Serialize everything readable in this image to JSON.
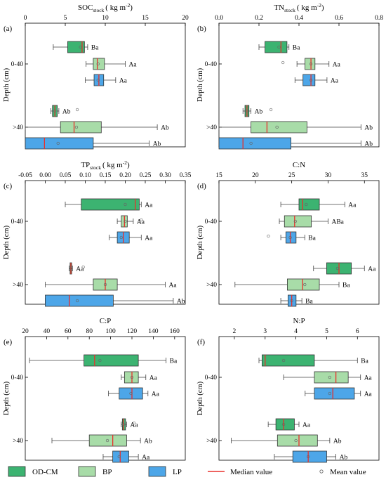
{
  "legend": {
    "groups": [
      {
        "label": "OD-CM",
        "color": "#3cb371"
      },
      {
        "label": "BP",
        "color": "#a8dca8"
      },
      {
        "label": "LP",
        "color": "#4da6e8"
      }
    ],
    "median_label": "Median value",
    "mean_label": "Mean value",
    "median_color": "#e8302c"
  },
  "chart_data": [
    {
      "type": "boxplot",
      "panel": "(a)",
      "title": "SOC",
      "title_sub": "stock",
      "title_unit": "( kg m",
      "title_sup": "-2",
      "title_end": ")",
      "xlim": [
        0,
        20
      ],
      "xticks": [
        "0",
        "5",
        "10",
        "15",
        "20"
      ],
      "ylabel": "Depth (cm)",
      "depth_labels": [
        "0-40",
        ">40"
      ],
      "groups": [
        {
          "depth": "0-40",
          "series": "OD-CM",
          "min": 3.5,
          "q1": 5.3,
          "median": 7.1,
          "q3": 7.4,
          "max": 7.8,
          "mean": 6.9,
          "letter": "Ba"
        },
        {
          "depth": "0-40",
          "series": "BP",
          "min": 7.6,
          "q1": 8.5,
          "median": 9.0,
          "q3": 9.9,
          "max": 12.5,
          "mean": 9.1,
          "letter": "Aa"
        },
        {
          "depth": "0-40",
          "series": "LP",
          "min": 7.5,
          "q1": 8.6,
          "median": 9.2,
          "q3": 9.8,
          "max": 11.3,
          "mean": 9.1,
          "letter": "Aa"
        },
        {
          "depth": ">40",
          "series": "OD-CM",
          "min": 3.2,
          "q1": 3.4,
          "median": 3.7,
          "q3": 4.0,
          "max": 4.2,
          "mean": 3.7,
          "letter": "Ab",
          "outliers": [
            6.5
          ]
        },
        {
          "depth": ">40",
          "series": "BP",
          "min": 0.0,
          "q1": 4.4,
          "median": 6.1,
          "q3": 9.5,
          "max": 16.5,
          "mean": 6.4,
          "letter": "Ab"
        },
        {
          "depth": ">40",
          "series": "LP",
          "min": 0.0,
          "q1": 0.0,
          "median": 2.4,
          "q3": 8.5,
          "max": 15.5,
          "mean": 4.1,
          "letter": "Ab"
        }
      ]
    },
    {
      "type": "boxplot",
      "panel": "(b)",
      "title": "TN",
      "title_sub": "stock",
      "title_unit": "( kg m",
      "title_sup": "-2",
      "title_end": ")",
      "xlim": [
        0.0,
        0.8
      ],
      "xticks": [
        "0.0",
        "0.2",
        "0.4",
        "0.6",
        "0.8"
      ],
      "ylabel": "Depth (cm)",
      "depth_labels": [
        "0-40",
        ">40"
      ],
      "groups": [
        {
          "depth": "0-40",
          "series": "OD-CM",
          "min": 0.2,
          "q1": 0.23,
          "median": 0.31,
          "q3": 0.34,
          "max": 0.35,
          "mean": 0.3,
          "letter": "Ba"
        },
        {
          "depth": "0-40",
          "series": "BP",
          "min": 0.39,
          "q1": 0.43,
          "median": 0.46,
          "q3": 0.48,
          "max": 0.55,
          "mean": 0.46,
          "letter": "Aa",
          "outliers": [
            0.32
          ]
        },
        {
          "depth": "0-40",
          "series": "LP",
          "min": 0.38,
          "q1": 0.42,
          "median": 0.46,
          "q3": 0.48,
          "max": 0.54,
          "mean": 0.46,
          "letter": "Aa"
        },
        {
          "depth": ">40",
          "series": "OD-CM",
          "min": 0.12,
          "q1": 0.13,
          "median": 0.14,
          "q3": 0.15,
          "max": 0.16,
          "mean": 0.14,
          "letter": "Ab",
          "outliers": [
            0.26
          ]
        },
        {
          "depth": ">40",
          "series": "BP",
          "min": 0.0,
          "q1": 0.16,
          "median": 0.24,
          "q3": 0.44,
          "max": 0.71,
          "mean": 0.29,
          "letter": "Ab"
        },
        {
          "depth": ">40",
          "series": "LP",
          "min": 0.0,
          "q1": 0.0,
          "median": 0.12,
          "q3": 0.36,
          "max": 0.71,
          "mean": 0.16,
          "letter": "Ab"
        }
      ]
    },
    {
      "type": "boxplot",
      "panel": "(c)",
      "title": "TP",
      "title_sub": "stock",
      "title_unit": "( kg m",
      "title_sup": "-2",
      "title_end": ")",
      "xlim": [
        -0.05,
        0.35
      ],
      "xticks": [
        "-0.05",
        "0.00",
        "0.05",
        "0.10",
        "0.15",
        "0.20",
        "0.25",
        "0.30",
        "0.35"
      ],
      "ylabel": "Depth (cm)",
      "depth_labels": [
        "0-40",
        ">40"
      ],
      "groups": [
        {
          "depth": "0-40",
          "series": "OD-CM",
          "min": 0.05,
          "q1": 0.09,
          "median": 0.225,
          "q3": 0.235,
          "max": 0.24,
          "mean": 0.2,
          "letter": "Aa"
        },
        {
          "depth": "0-40",
          "series": "BP",
          "min": 0.18,
          "q1": 0.19,
          "median": 0.198,
          "q3": 0.205,
          "max": 0.22,
          "mean": 0.2,
          "letter": "Aa",
          "outliers": [
            0.24
          ]
        },
        {
          "depth": "0-40",
          "series": "LP",
          "min": 0.16,
          "q1": 0.18,
          "median": 0.195,
          "q3": 0.21,
          "max": 0.24,
          "mean": 0.19,
          "letter": "Aa"
        },
        {
          "depth": ">40",
          "series": "OD-CM",
          "min": 0.06,
          "q1": 0.062,
          "median": 0.064,
          "q3": 0.066,
          "max": 0.068,
          "mean": 0.064,
          "letter": "Aa",
          "outliers": [
            0.095
          ]
        },
        {
          "depth": ">40",
          "series": "BP",
          "min": 0.0,
          "q1": 0.12,
          "median": 0.15,
          "q3": 0.18,
          "max": 0.3,
          "mean": 0.15,
          "letter": "Aa"
        },
        {
          "depth": ">40",
          "series": "LP",
          "min": 0.0,
          "q1": 0.0,
          "median": 0.06,
          "q3": 0.17,
          "max": 0.32,
          "mean": 0.08,
          "letter": "Ab"
        }
      ]
    },
    {
      "type": "boxplot",
      "panel": "(d)",
      "title": "C:N",
      "xlim": [
        15,
        37
      ],
      "xticks": [
        "15",
        "20",
        "25",
        "30",
        "35"
      ],
      "ylabel": "Depth (cm)",
      "depth_labels": [
        "0-40",
        ">40"
      ],
      "groups": [
        {
          "depth": "0-40",
          "series": "OD-CM",
          "min": 23.5,
          "q1": 26.0,
          "median": 26.5,
          "q3": 28.8,
          "max": 32.3,
          "mean": 27.0,
          "letter": "Aa"
        },
        {
          "depth": "0-40",
          "series": "BP",
          "min": 23.3,
          "q1": 24.0,
          "median": 25.4,
          "q3": 27.7,
          "max": 30.0,
          "mean": 25.5,
          "letter": "ABa"
        },
        {
          "depth": "0-40",
          "series": "LP",
          "min": 23.5,
          "q1": 24.2,
          "median": 24.8,
          "q3": 25.6,
          "max": 26.8,
          "mean": 24.8,
          "letter": "Ba",
          "outliers": [
            21.8
          ]
        },
        {
          "depth": ">40",
          "series": "OD-CM",
          "min": 28.0,
          "q1": 29.8,
          "median": 31.5,
          "q3": 33.2,
          "max": 35.0,
          "mean": 31.3,
          "letter": "Aa"
        },
        {
          "depth": ">40",
          "series": "BP",
          "min": 17.2,
          "q1": 24.4,
          "median": 26.5,
          "q3": 28.8,
          "max": 31.5,
          "mean": 26.8,
          "letter": "Ba"
        },
        {
          "depth": ">40",
          "series": "LP",
          "min": 23.5,
          "q1": 24.5,
          "median": 25.0,
          "q3": 25.6,
          "max": 26.4,
          "mean": 25.0,
          "letter": "Ba"
        }
      ]
    },
    {
      "type": "boxplot",
      "panel": "(e)",
      "title": "C:P",
      "xlim": [
        20,
        170
      ],
      "xticks": [
        "20",
        "40",
        "60",
        "80",
        "100",
        "120",
        "140",
        "160"
      ],
      "ylabel": "Depth (cm)",
      "depth_labels": [
        "0-40",
        ">40"
      ],
      "groups": [
        {
          "depth": "0-40",
          "series": "OD-CM",
          "min": 24,
          "q1": 75,
          "median": 85,
          "q3": 126,
          "max": 152,
          "mean": 90,
          "letter": "Ba"
        },
        {
          "depth": "0-40",
          "series": "BP",
          "min": 110,
          "q1": 113,
          "median": 120,
          "q3": 126,
          "max": 133,
          "mean": 120,
          "letter": "Aa"
        },
        {
          "depth": "0-40",
          "series": "LP",
          "min": 98,
          "q1": 108,
          "median": 120,
          "q3": 130,
          "max": 135,
          "mean": 119,
          "letter": "Aa"
        },
        {
          "depth": ">40",
          "series": "OD-CM",
          "min": 110,
          "q1": 111,
          "median": 112,
          "q3": 114,
          "max": 115,
          "mean": 112,
          "letter": "Aa",
          "outliers": [
            122
          ]
        },
        {
          "depth": ">40",
          "series": "BP",
          "min": 45,
          "q1": 80,
          "median": 102,
          "q3": 115,
          "max": 128,
          "mean": 97,
          "letter": "Ab"
        },
        {
          "depth": ">40",
          "series": "LP",
          "min": 93,
          "q1": 102,
          "median": 109,
          "q3": 117,
          "max": 126,
          "mean": 108,
          "letter": "Aa"
        }
      ]
    },
    {
      "type": "boxplot",
      "panel": "(f)",
      "title": "N:P",
      "xlim": [
        1.5,
        6.7
      ],
      "xticks": [
        "2",
        "3",
        "4",
        "5",
        "6"
      ],
      "ylabel": "Depth (cm)",
      "depth_labels": [
        "0-40",
        ">40"
      ],
      "groups": [
        {
          "depth": "0-40",
          "series": "OD-CM",
          "min": 2.8,
          "q1": 2.9,
          "median": 3.0,
          "q3": 4.6,
          "max": 6.0,
          "mean": 3.6,
          "letter": "Ba"
        },
        {
          "depth": "0-40",
          "series": "BP",
          "min": 3.6,
          "q1": 4.6,
          "median": 5.3,
          "q3": 5.7,
          "max": 6.1,
          "mean": 5.1,
          "letter": "Aa"
        },
        {
          "depth": "0-40",
          "series": "LP",
          "min": 4.3,
          "q1": 4.6,
          "median": 5.2,
          "q3": 5.9,
          "max": 6.1,
          "mean": 5.1,
          "letter": "Aa"
        },
        {
          "depth": ">40",
          "series": "OD-CM",
          "min": 3.1,
          "q1": 3.35,
          "median": 3.6,
          "q3": 3.95,
          "max": 4.1,
          "mean": 3.6,
          "letter": "Aa"
        },
        {
          "depth": ">40",
          "series": "BP",
          "min": 1.9,
          "q1": 3.4,
          "median": 4.1,
          "q3": 4.7,
          "max": 5.1,
          "mean": 4.0,
          "letter": "Ab"
        },
        {
          "depth": ">40",
          "series": "LP",
          "min": 3.3,
          "q1": 3.9,
          "median": 4.4,
          "q3": 5.0,
          "max": 5.3,
          "mean": 4.4,
          "letter": "Ab"
        }
      ]
    }
  ]
}
